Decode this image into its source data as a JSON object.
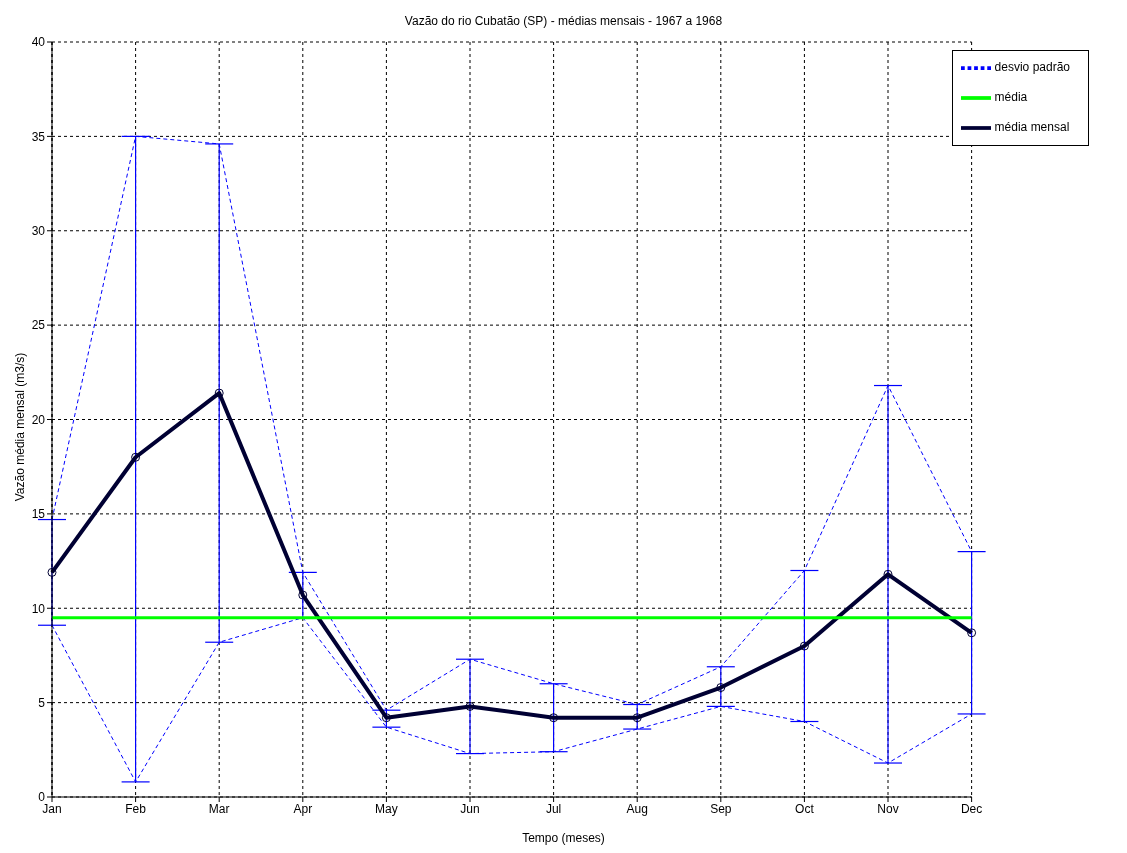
{
  "chart_data": {
    "type": "line",
    "title": "Vazão do rio Cubatão (SP) - médias mensais - 1967 a 1968",
    "xlabel": "Tempo (meses)",
    "ylabel": "Vazão média mensal (m3/s)",
    "categories": [
      "Jan",
      "Feb",
      "Mar",
      "Apr",
      "May",
      "Jun",
      "Jul",
      "Aug",
      "Sep",
      "Oct",
      "Nov",
      "Dec"
    ],
    "series": [
      {
        "name": "média mensal",
        "color": "#000033",
        "marker": "circle",
        "line_style": "solid",
        "values": [
          11.9,
          18.0,
          21.4,
          10.7,
          4.2,
          4.8,
          4.2,
          4.2,
          5.8,
          8.0,
          11.8,
          8.7
        ],
        "errors": [
          [
            9.1,
            14.7
          ],
          [
            0.8,
            35.0
          ],
          [
            8.2,
            34.6
          ],
          [
            9.5,
            11.9
          ],
          [
            3.7,
            4.6
          ],
          [
            2.3,
            7.3
          ],
          [
            2.4,
            6.0
          ],
          [
            3.6,
            4.9
          ],
          [
            4.8,
            6.9
          ],
          [
            4.0,
            12.0
          ],
          [
            1.8,
            21.8
          ],
          [
            4.4,
            13.0
          ]
        ]
      },
      {
        "name": "desvio padrão",
        "color": "#0000ff",
        "marker": "none",
        "line_style": "dashed",
        "values": [
          14.7,
          35.0,
          34.6,
          11.9,
          4.6,
          7.3,
          6.0,
          4.9,
          6.9,
          12.0,
          21.8,
          13.0
        ]
      },
      {
        "color": "#0000ff",
        "marker": "none",
        "line_style": "dashed",
        "values": [
          9.1,
          0.8,
          8.2,
          9.5,
          3.7,
          2.3,
          2.4,
          3.6,
          4.8,
          4.0,
          1.8,
          4.4
        ]
      },
      {
        "name": "média",
        "color": "#00ff00",
        "marker": "none",
        "line_style": "solid",
        "values": [
          9.5,
          9.5,
          9.5,
          9.5,
          9.5,
          9.5,
          9.5,
          9.5,
          9.5,
          9.5,
          9.5,
          9.5
        ]
      }
    ],
    "ylim": [
      0,
      40
    ],
    "yticks": [
      0,
      5,
      10,
      15,
      20,
      25,
      30,
      35,
      40
    ],
    "grid": true,
    "legend": "top right"
  }
}
